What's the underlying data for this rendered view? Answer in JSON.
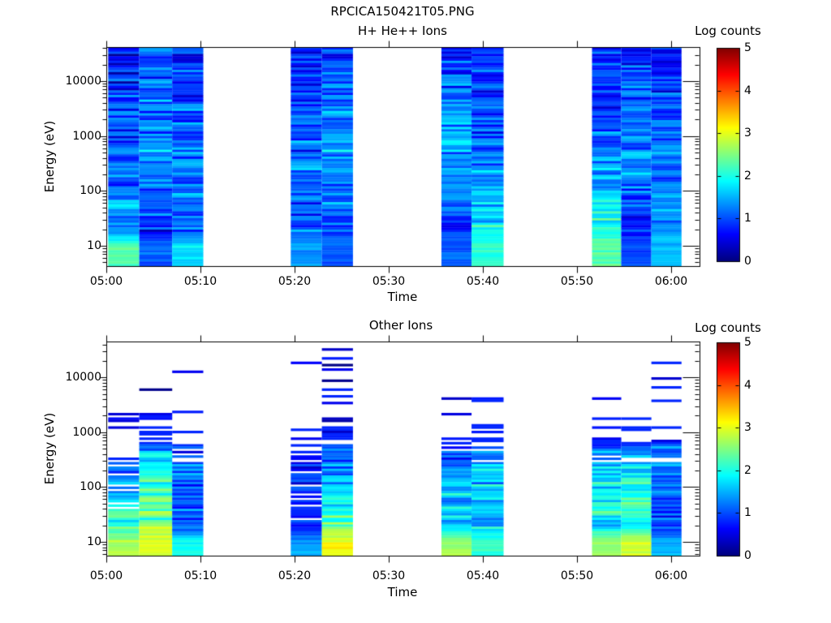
{
  "figure_title": "RPCICA150421T05.PNG",
  "chart_data": [
    {
      "type": "heatmap",
      "title": "H+ He++ Ions",
      "xlabel": "Time",
      "ylabel": "Energy (eV)",
      "colorbar_title": "Log counts",
      "colormap": "jet",
      "value_range": [
        0,
        5
      ],
      "colorbar_ticks": [
        "0",
        "1",
        "2",
        "3",
        "4",
        "5"
      ],
      "x_ticks": [
        "05:00",
        "05:10",
        "05:20",
        "05:30",
        "05:40",
        "05:50",
        "06:00"
      ],
      "x_tick_minutes": [
        0,
        10,
        20,
        30,
        40,
        50,
        60
      ],
      "x_range_minutes": [
        0,
        63
      ],
      "y_ticks": [
        "10",
        "100",
        "1000",
        "10000"
      ],
      "y_tick_exponents": [
        1,
        2,
        3,
        4
      ],
      "y_range_ev": [
        4.3,
        41500
      ],
      "grid": false,
      "legend_position": "none",
      "profile_logE": [
        4.6,
        4.0,
        3.0,
        2.3,
        1.7,
        1.3,
        1.0
      ],
      "segments": [
        {
          "t": [
            0.2,
            3.5,
            7.0,
            10.3
          ],
          "columns": [
            {
              "values": [
                0.7,
                0.8,
                0.95,
                1.1,
                1.55,
                1.15,
                2.3
              ]
            },
            {
              "values": [
                0.85,
                1.0,
                1.3,
                1.35,
                1.0,
                0.65,
                1.1
              ]
            },
            {
              "values": [
                0.75,
                0.9,
                1.05,
                1.2,
                1.15,
                1.0,
                1.75
              ]
            }
          ]
        },
        {
          "t": [
            19.6,
            22.9,
            26.2
          ],
          "columns": [
            {
              "values": [
                0.75,
                0.85,
                1.05,
                1.1,
                1.0,
                0.95,
                1.4
              ]
            },
            {
              "values": [
                0.85,
                1.0,
                1.45,
                1.25,
                1.1,
                0.9,
                1.05
              ]
            }
          ]
        },
        {
          "t": [
            35.6,
            38.8,
            42.2
          ],
          "columns": [
            {
              "values": [
                0.9,
                1.1,
                1.45,
                1.35,
                1.15,
                0.95,
                1.1
              ]
            },
            {
              "values": [
                0.7,
                0.85,
                1.0,
                1.25,
                1.6,
                1.9,
                2.1
              ]
            }
          ]
        },
        {
          "t": [
            51.6,
            54.7,
            57.9,
            61.1
          ],
          "columns": [
            {
              "values": [
                0.75,
                0.85,
                1.05,
                1.5,
                1.8,
                1.9,
                2.3
              ]
            },
            {
              "values": [
                0.85,
                1.0,
                1.3,
                1.2,
                0.85,
                0.7,
                1.0
              ]
            },
            {
              "values": [
                0.7,
                0.85,
                1.05,
                1.25,
                1.45,
                1.35,
                1.6
              ]
            }
          ]
        }
      ]
    },
    {
      "type": "heatmap",
      "title": "Other Ions",
      "xlabel": "Time",
      "ylabel": "Energy (eV)",
      "colorbar_title": "Log counts",
      "colormap": "jet",
      "value_range": [
        0,
        5
      ],
      "colorbar_ticks": [
        "0",
        "1",
        "2",
        "3",
        "4",
        "5"
      ],
      "x_ticks": [
        "05:00",
        "05:10",
        "05:20",
        "05:30",
        "05:40",
        "05:50",
        "06:00"
      ],
      "x_tick_minutes": [
        0,
        10,
        20,
        30,
        40,
        50,
        60
      ],
      "x_range_minutes": [
        0,
        63
      ],
      "y_ticks": [
        "10",
        "100",
        "1000",
        "10000"
      ],
      "y_tick_exponents": [
        1,
        2,
        3,
        4
      ],
      "y_range_ev": [
        4.3,
        41500
      ],
      "grid": false,
      "legend_position": "none",
      "sparse_high_energy": true,
      "profile_logE": [
        4.6,
        4.0,
        3.0,
        2.3,
        1.7,
        1.3,
        1.0
      ],
      "segments": [
        {
          "t": [
            0.2,
            3.5,
            7.0,
            10.3
          ],
          "columns": [
            {
              "values": [
                0.25,
                0.35,
                0.55,
                1.0,
                1.9,
                2.0,
                2.7
              ],
              "coverage": 0.7
            },
            {
              "values": [
                0.3,
                0.5,
                1.0,
                1.9,
                2.3,
                2.5,
                3.0
              ],
              "coverage": 1.3
            },
            {
              "values": [
                0.3,
                0.45,
                0.8,
                1.3,
                1.15,
                0.8,
                2.0
              ],
              "coverage": 1.0
            }
          ]
        },
        {
          "t": [
            19.6,
            22.9,
            26.2
          ],
          "columns": [
            {
              "values": [
                0.3,
                0.4,
                0.6,
                0.75,
                0.8,
                0.7,
                1.4
              ],
              "coverage": 0.8
            },
            {
              "values": [
                0.3,
                0.5,
                0.9,
                1.4,
                1.9,
                2.4,
                3.1
              ],
              "coverage": 1.4
            }
          ]
        },
        {
          "t": [
            35.6,
            38.8,
            42.2
          ],
          "columns": [
            {
              "values": [
                0.3,
                0.45,
                0.7,
                1.3,
                1.7,
                1.6,
                2.7
              ],
              "coverage": 1.1
            },
            {
              "values": [
                0.3,
                0.5,
                0.85,
                1.5,
                1.8,
                1.5,
                2.2
              ],
              "coverage": 1.3
            }
          ]
        },
        {
          "t": [
            51.6,
            54.7,
            57.9,
            61.1
          ],
          "columns": [
            {
              "values": [
                0.25,
                0.4,
                0.8,
                1.7,
                1.95,
                1.8,
                2.6
              ],
              "coverage": 1.0
            },
            {
              "values": [
                0.3,
                0.55,
                1.0,
                1.9,
                2.1,
                1.9,
                2.9
              ],
              "coverage": 1.2
            },
            {
              "values": [
                0.3,
                0.5,
                0.9,
                1.3,
                0.8,
                0.9,
                1.5
              ],
              "coverage": 1.1
            }
          ]
        }
      ]
    }
  ],
  "render": {
    "seed": 7,
    "rows": 96,
    "noise_amp": 0.45,
    "top_panel_density": 0.96,
    "colors": {
      "background": "#ffffff",
      "axis": "#000000",
      "text": "#000000"
    }
  }
}
